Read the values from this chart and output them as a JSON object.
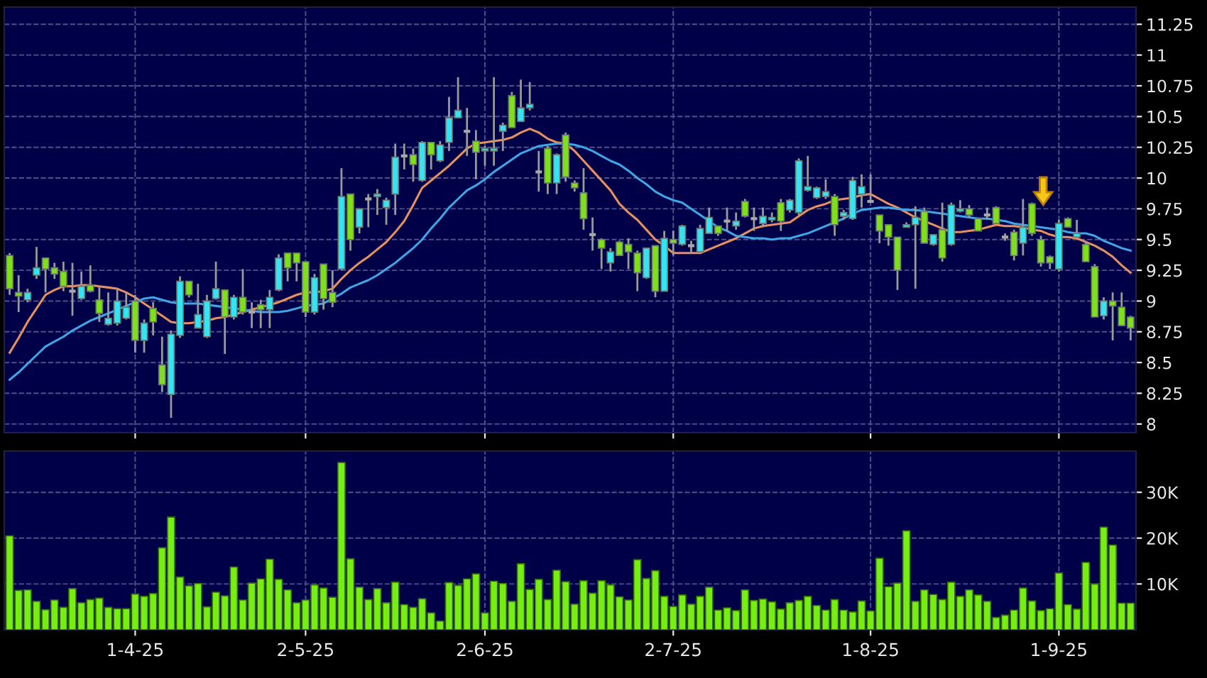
{
  "chart_data": [
    {
      "type": "candlestick",
      "categories": [
        null,
        null,
        null,
        null,
        null,
        null,
        null,
        null,
        null,
        null,
        null,
        null,
        null,
        null,
        null,
        null,
        null,
        null,
        null,
        null,
        null,
        null,
        null,
        null,
        null,
        null,
        null,
        null,
        null,
        null,
        null,
        null,
        null,
        null,
        null,
        null,
        null,
        null,
        null,
        null,
        null,
        null,
        null,
        null,
        null,
        null,
        null,
        null,
        null,
        null,
        null,
        null,
        null,
        null,
        null,
        null,
        null,
        null,
        null,
        null,
        null,
        null,
        null,
        null,
        null,
        null,
        null,
        null,
        null,
        null,
        null,
        null,
        null,
        null,
        null,
        null,
        null,
        null,
        null,
        null,
        null,
        null,
        null,
        null,
        null,
        null,
        null,
        null,
        null,
        null,
        null,
        null,
        null,
        null,
        null,
        null,
        null,
        null,
        null,
        null,
        null,
        null,
        null,
        null,
        null,
        null,
        null,
        null,
        null,
        null,
        null,
        null,
        null,
        null,
        null,
        null,
        null,
        null,
        null,
        null,
        null,
        null,
        null,
        null,
        null,
        null
      ],
      "ohlc": [
        [
          9.37,
          9.39,
          9.05,
          9.1
        ],
        [
          9.07,
          9.21,
          8.91,
          9.04
        ],
        [
          9.01,
          9.1,
          8.99,
          9.07
        ],
        [
          9.21,
          9.44,
          9.18,
          9.27
        ],
        [
          9.35,
          9.35,
          9.07,
          9.26
        ],
        [
          9.27,
          9.31,
          9.18,
          9.22
        ],
        [
          9.24,
          9.32,
          9.08,
          9.12
        ],
        [
          9.08,
          9.31,
          8.88,
          9.08
        ],
        [
          9.02,
          9.24,
          9.01,
          9.12
        ],
        [
          9.13,
          9.29,
          9.07,
          9.08
        ],
        [
          9.01,
          9.12,
          8.83,
          8.9
        ],
        [
          8.81,
          9.07,
          8.8,
          8.86
        ],
        [
          8.82,
          9.1,
          8.8,
          9.0
        ],
        [
          8.86,
          9.07,
          8.85,
          8.95
        ],
        [
          9.0,
          9.05,
          8.58,
          8.68
        ],
        [
          8.68,
          8.85,
          8.58,
          8.82
        ],
        [
          8.94,
          8.99,
          8.72,
          8.83
        ],
        [
          8.48,
          8.71,
          8.26,
          8.32
        ],
        [
          8.24,
          8.76,
          8.05,
          8.73
        ],
        [
          8.72,
          9.2,
          8.7,
          9.16
        ],
        [
          9.16,
          9.16,
          9.03,
          9.05
        ],
        [
          8.78,
          9.14,
          8.78,
          8.89
        ],
        [
          8.71,
          9.05,
          8.7,
          9.0
        ],
        [
          9.02,
          9.32,
          9.01,
          9.1
        ],
        [
          9.09,
          9.09,
          8.57,
          8.87
        ],
        [
          8.87,
          9.05,
          8.85,
          9.03
        ],
        [
          9.03,
          9.26,
          8.89,
          8.91
        ],
        [
          8.91,
          8.99,
          8.78,
          8.91
        ],
        [
          8.97,
          9.01,
          8.78,
          8.93
        ],
        [
          8.93,
          9.09,
          8.78,
          9.03
        ],
        [
          9.09,
          9.38,
          9.08,
          9.35
        ],
        [
          9.39,
          9.39,
          9.16,
          9.27
        ],
        [
          9.39,
          9.39,
          9.16,
          9.31
        ],
        [
          9.32,
          9.32,
          8.87,
          8.91
        ],
        [
          8.91,
          9.22,
          8.89,
          9.19
        ],
        [
          9.3,
          9.3,
          8.93,
          9.02
        ],
        [
          9.07,
          9.25,
          8.95,
          8.99
        ],
        [
          9.26,
          10.08,
          9.25,
          9.85
        ],
        [
          9.87,
          9.87,
          9.41,
          9.5
        ],
        [
          9.6,
          9.75,
          9.55,
          9.75
        ],
        [
          9.83,
          9.87,
          9.6,
          9.83
        ],
        [
          9.85,
          9.91,
          9.7,
          9.87
        ],
        [
          9.76,
          9.84,
          9.62,
          9.82
        ],
        [
          9.87,
          10.28,
          9.7,
          10.17
        ],
        [
          10.18,
          10.28,
          10.07,
          10.18
        ],
        [
          10.19,
          10.24,
          9.97,
          10.11
        ],
        [
          9.98,
          10.3,
          9.97,
          10.29
        ],
        [
          10.29,
          10.29,
          10.07,
          10.19
        ],
        [
          10.14,
          10.3,
          10.13,
          10.27
        ],
        [
          10.29,
          10.66,
          10.22,
          10.49
        ],
        [
          10.49,
          10.82,
          10.49,
          10.55
        ],
        [
          10.38,
          10.57,
          10.18,
          10.38
        ],
        [
          10.3,
          10.39,
          9.99,
          10.21
        ],
        [
          10.22,
          10.26,
          10.1,
          10.24
        ],
        [
          10.22,
          10.82,
          10.1,
          10.24
        ],
        [
          10.38,
          10.45,
          10.22,
          10.43
        ],
        [
          10.67,
          10.7,
          10.41,
          10.41
        ],
        [
          10.46,
          10.8,
          10.46,
          10.57
        ],
        [
          10.57,
          10.78,
          10.55,
          10.6
        ],
        [
          10.05,
          10.22,
          9.89,
          10.05
        ],
        [
          10.24,
          10.26,
          9.87,
          9.96
        ],
        [
          9.96,
          10.2,
          9.87,
          10.19
        ],
        [
          10.35,
          10.37,
          9.97,
          10.01
        ],
        [
          9.96,
          9.98,
          9.89,
          9.92
        ],
        [
          9.88,
          10.08,
          9.58,
          9.67
        ],
        [
          9.54,
          9.68,
          9.41,
          9.54
        ],
        [
          9.5,
          9.51,
          9.26,
          9.43
        ],
        [
          9.31,
          9.43,
          9.24,
          9.4
        ],
        [
          9.48,
          9.49,
          9.37,
          9.37
        ],
        [
          9.46,
          9.51,
          9.26,
          9.4
        ],
        [
          9.39,
          9.41,
          9.08,
          9.23
        ],
        [
          9.19,
          9.43,
          9.18,
          9.43
        ],
        [
          9.45,
          9.45,
          9.03,
          9.08
        ],
        [
          9.08,
          9.57,
          9.08,
          9.51
        ],
        [
          9.5,
          9.57,
          9.37,
          9.47
        ],
        [
          9.46,
          9.62,
          9.45,
          9.61
        ],
        [
          9.45,
          9.49,
          9.39,
          9.45
        ],
        [
          9.4,
          9.62,
          9.39,
          9.59
        ],
        [
          9.55,
          9.76,
          9.55,
          9.68
        ],
        [
          9.61,
          9.61,
          9.53,
          9.55
        ],
        [
          9.65,
          9.76,
          9.57,
          9.65
        ],
        [
          9.61,
          9.72,
          9.58,
          9.65
        ],
        [
          9.81,
          9.83,
          9.68,
          9.69
        ],
        [
          9.67,
          9.76,
          9.57,
          9.67
        ],
        [
          9.63,
          9.76,
          9.6,
          9.69
        ],
        [
          9.66,
          9.72,
          9.64,
          9.68
        ],
        [
          9.8,
          9.83,
          9.57,
          9.65
        ],
        [
          9.74,
          9.83,
          9.72,
          9.82
        ],
        [
          9.72,
          10.16,
          9.7,
          10.14
        ],
        [
          9.9,
          10.18,
          9.89,
          9.93
        ],
        [
          9.84,
          9.93,
          9.83,
          9.92
        ],
        [
          9.85,
          9.99,
          9.83,
          9.89
        ],
        [
          9.85,
          9.87,
          9.53,
          9.62
        ],
        [
          9.69,
          9.74,
          9.66,
          9.72
        ],
        [
          9.67,
          10.01,
          9.66,
          9.98
        ],
        [
          9.87,
          10.03,
          9.76,
          9.93
        ],
        [
          9.81,
          10.03,
          9.8,
          9.81
        ],
        [
          9.7,
          9.7,
          9.47,
          9.57
        ],
        [
          9.62,
          9.62,
          9.45,
          9.52
        ],
        [
          9.52,
          9.52,
          9.09,
          9.25
        ],
        [
          9.6,
          9.64,
          9.6,
          9.62
        ],
        [
          9.62,
          9.77,
          9.1,
          9.68
        ],
        [
          9.73,
          9.76,
          9.47,
          9.47
        ],
        [
          9.46,
          9.54,
          9.45,
          9.54
        ],
        [
          9.58,
          9.8,
          9.32,
          9.35
        ],
        [
          9.46,
          9.8,
          9.45,
          9.78
        ],
        [
          9.73,
          9.82,
          9.72,
          9.75
        ],
        [
          9.75,
          9.78,
          9.68,
          9.7
        ],
        [
          9.67,
          9.67,
          9.57,
          9.57
        ],
        [
          9.7,
          9.76,
          9.66,
          9.7
        ],
        [
          9.76,
          9.77,
          9.63,
          9.63
        ],
        [
          9.52,
          9.55,
          9.49,
          9.52
        ],
        [
          9.56,
          9.58,
          9.33,
          9.37
        ],
        [
          9.47,
          9.83,
          9.37,
          9.6
        ],
        [
          9.79,
          9.8,
          9.53,
          9.55
        ],
        [
          9.5,
          9.53,
          9.28,
          9.31
        ],
        [
          9.36,
          9.37,
          9.26,
          9.31
        ],
        [
          9.26,
          9.66,
          9.24,
          9.63
        ],
        [
          9.67,
          9.68,
          9.6,
          9.6
        ],
        [
          9.52,
          9.66,
          9.51,
          9.55
        ],
        [
          9.46,
          9.49,
          9.32,
          9.32
        ],
        [
          9.28,
          9.3,
          8.87,
          8.87
        ],
        [
          8.88,
          9.03,
          8.85,
          9.0
        ],
        [
          9.0,
          9.07,
          8.68,
          8.96
        ],
        [
          8.95,
          9.07,
          8.8,
          8.8
        ],
        [
          8.87,
          8.88,
          8.68,
          8.78
        ]
      ],
      "colors": [
        "#7fe01a",
        "#7fe01a",
        "#33e4f5",
        "#33e4f5",
        "#7fe01a",
        "#7fe01a",
        "#7fe01a",
        "#a8a8a8",
        "#33e4f5",
        "#7fe01a",
        "#7fe01a",
        "#33e4f5",
        "#33e4f5",
        "#33e4f5",
        "#7fe01a",
        "#33e4f5",
        "#7fe01a",
        "#7fe01a",
        "#33e4f5",
        "#33e4f5",
        "#7fe01a",
        "#33e4f5",
        "#33e4f5",
        "#33e4f5",
        "#7fe01a",
        "#33e4f5",
        "#7fe01a",
        "#a8a8a8",
        "#7fe01a",
        "#33e4f5",
        "#33e4f5",
        "#7fe01a",
        "#7fe01a",
        "#7fe01a",
        "#33e4f5",
        "#7fe01a",
        "#7fe01a",
        "#33e4f5",
        "#7fe01a",
        "#33e4f5",
        "#a8a8a8",
        "#33e4f5",
        "#33e4f5",
        "#33e4f5",
        "#a8a8a8",
        "#7fe01a",
        "#33e4f5",
        "#7fe01a",
        "#33e4f5",
        "#33e4f5",
        "#33e4f5",
        "#a8a8a8",
        "#7fe01a",
        "#33e4f5",
        "#33e4f5",
        "#33e4f5",
        "#7fe01a",
        "#33e4f5",
        "#33e4f5",
        "#a8a8a8",
        "#7fe01a",
        "#33e4f5",
        "#7fe01a",
        "#7fe01a",
        "#7fe01a",
        "#a8a8a8",
        "#7fe01a",
        "#33e4f5",
        "#7fe01a",
        "#7fe01a",
        "#7fe01a",
        "#33e4f5",
        "#7fe01a",
        "#33e4f5",
        "#7fe01a",
        "#33e4f5",
        "#a8a8a8",
        "#33e4f5",
        "#33e4f5",
        "#7fe01a",
        "#a8a8a8",
        "#33e4f5",
        "#7fe01a",
        "#a8a8a8",
        "#33e4f5",
        "#33e4f5",
        "#7fe01a",
        "#33e4f5",
        "#33e4f5",
        "#33e4f5",
        "#33e4f5",
        "#33e4f5",
        "#7fe01a",
        "#33e4f5",
        "#33e4f5",
        "#33e4f5",
        "#a8a8a8",
        "#7fe01a",
        "#7fe01a",
        "#7fe01a",
        "#33e4f5",
        "#33e4f5",
        "#7fe01a",
        "#33e4f5",
        "#7fe01a",
        "#33e4f5",
        "#33e4f5",
        "#7fe01a",
        "#7fe01a",
        "#a8a8a8",
        "#7fe01a",
        "#a8a8a8",
        "#7fe01a",
        "#33e4f5",
        "#7fe01a",
        "#7fe01a",
        "#7fe01a",
        "#33e4f5",
        "#7fe01a",
        "#33e4f5",
        "#7fe01a",
        "#7fe01a",
        "#33e4f5",
        "#7fe01a",
        "#7fe01a",
        "#7fe01a"
      ],
      "series": [
        {
          "type": "line",
          "color": "#e8905f",
          "values": [
            8.58,
            8.7,
            8.83,
            8.94,
            9.05,
            9.09,
            9.12,
            9.12,
            9.13,
            9.13,
            9.12,
            9.11,
            9.1,
            9.07,
            9.03,
            8.98,
            8.93,
            8.88,
            8.83,
            8.82,
            8.82,
            8.83,
            8.84,
            8.86,
            8.87,
            8.89,
            8.91,
            8.93,
            8.95,
            8.97,
            8.99,
            9.02,
            9.05,
            9.07,
            9.07,
            9.08,
            9.1,
            9.18,
            9.25,
            9.31,
            9.36,
            9.42,
            9.48,
            9.56,
            9.65,
            9.78,
            9.92,
            9.98,
            10.04,
            10.1,
            10.17,
            10.24,
            10.28,
            10.29,
            10.3,
            10.31,
            10.33,
            10.37,
            10.4,
            10.37,
            10.32,
            10.29,
            10.28,
            10.22,
            10.14,
            10.06,
            9.98,
            9.9,
            9.79,
            9.72,
            9.66,
            9.58,
            9.5,
            9.45,
            9.39,
            9.39,
            9.39,
            9.39,
            9.42,
            9.45,
            9.48,
            9.51,
            9.55,
            9.59,
            9.61,
            9.62,
            9.63,
            9.64,
            9.69,
            9.74,
            9.77,
            9.79,
            9.82,
            9.83,
            9.84,
            9.86,
            9.87,
            9.83,
            9.79,
            9.76,
            9.72,
            9.68,
            9.65,
            9.62,
            9.59,
            9.56,
            9.56,
            9.57,
            9.58,
            9.6,
            9.62,
            9.61,
            9.61,
            9.6,
            9.58,
            9.57,
            9.54,
            9.52,
            9.52,
            9.51,
            9.48,
            9.45,
            9.41,
            9.36,
            9.29,
            9.23
          ]
        },
        {
          "type": "line",
          "color": "#3fa6e6",
          "values": [
            8.36,
            8.42,
            8.49,
            8.56,
            8.63,
            8.67,
            8.71,
            8.76,
            8.8,
            8.84,
            8.87,
            8.9,
            8.93,
            8.96,
            8.99,
            9.02,
            9.03,
            9.01,
            8.99,
            8.98,
            8.98,
            8.98,
            8.97,
            8.96,
            8.95,
            8.94,
            8.93,
            8.92,
            8.91,
            8.91,
            8.91,
            8.92,
            8.94,
            8.96,
            8.97,
            8.98,
            9.02,
            9.06,
            9.11,
            9.14,
            9.17,
            9.21,
            9.26,
            9.31,
            9.37,
            9.43,
            9.5,
            9.59,
            9.67,
            9.76,
            9.83,
            9.9,
            9.94,
            9.99,
            10.05,
            10.1,
            10.15,
            10.2,
            10.23,
            10.26,
            10.27,
            10.28,
            10.28,
            10.27,
            10.25,
            10.22,
            10.18,
            10.14,
            10.11,
            10.06,
            10.0,
            9.95,
            9.89,
            9.85,
            9.82,
            9.8,
            9.75,
            9.7,
            9.65,
            9.6,
            9.57,
            9.53,
            9.52,
            9.51,
            9.51,
            9.5,
            9.51,
            9.51,
            9.53,
            9.55,
            9.58,
            9.61,
            9.64,
            9.67,
            9.71,
            9.74,
            9.75,
            9.76,
            9.76,
            9.75,
            9.74,
            9.74,
            9.73,
            9.72,
            9.71,
            9.7,
            9.69,
            9.68,
            9.67,
            9.67,
            9.66,
            9.65,
            9.63,
            9.62,
            9.61,
            9.6,
            9.59,
            9.58,
            9.56,
            9.55,
            9.55,
            9.53,
            9.49,
            9.46,
            9.43,
            9.41
          ]
        }
      ],
      "ylim": [
        7.93,
        11.39
      ],
      "yticks": [
        8,
        8.25,
        8.5,
        8.75,
        9,
        9.25,
        9.5,
        9.75,
        10,
        10.25,
        10.5,
        10.75,
        11,
        11.25
      ],
      "grid": true,
      "tick_labels": "y"
    },
    {
      "type": "bar",
      "categories": [
        null,
        null,
        null,
        null,
        null,
        null,
        null,
        null,
        null,
        null,
        null,
        null,
        null,
        null,
        "1-4-25",
        null,
        null,
        null,
        null,
        null,
        null,
        null,
        null,
        null,
        null,
        null,
        null,
        null,
        null,
        null,
        null,
        null,
        null,
        "2-5-25",
        null,
        null,
        null,
        null,
        null,
        null,
        null,
        null,
        null,
        null,
        null,
        null,
        null,
        null,
        null,
        null,
        null,
        null,
        null,
        "2-6-25",
        null,
        null,
        null,
        null,
        null,
        null,
        null,
        null,
        null,
        null,
        null,
        null,
        null,
        null,
        null,
        null,
        null,
        null,
        null,
        null,
        "2-7-25",
        null,
        null,
        null,
        null,
        null,
        null,
        null,
        null,
        null,
        null,
        null,
        null,
        null,
        null,
        null,
        null,
        null,
        null,
        null,
        null,
        null,
        "1-8-25",
        null,
        null,
        null,
        null,
        null,
        null,
        null,
        null,
        null,
        null,
        null,
        null,
        null,
        null,
        null,
        null,
        null,
        null,
        null,
        null,
        "1-9-25",
        null,
        null,
        null,
        null,
        null,
        null,
        null,
        null
      ],
      "values": [
        20500,
        8600,
        8700,
        6200,
        4400,
        6500,
        4900,
        9000,
        5900,
        6600,
        6900,
        4900,
        4600,
        4600,
        7800,
        7300,
        7900,
        17900,
        24600,
        11500,
        9600,
        10100,
        5000,
        8200,
        7400,
        13700,
        6500,
        10200,
        11100,
        15400,
        11000,
        8700,
        5900,
        6500,
        9800,
        9100,
        7100,
        36500,
        15500,
        9300,
        6600,
        9000,
        5900,
        10400,
        5500,
        4900,
        6800,
        3700,
        1900,
        10300,
        9700,
        11100,
        12200,
        3700,
        10600,
        10100,
        6200,
        14400,
        8800,
        11000,
        6600,
        13000,
        10500,
        5600,
        10700,
        8000,
        10700,
        9800,
        7200,
        6500,
        15300,
        11200,
        12900,
        7300,
        5100,
        7600,
        5600,
        7300,
        9300,
        4300,
        4800,
        4200,
        8700,
        6400,
        6700,
        6100,
        4500,
        5900,
        6400,
        7300,
        5300,
        4300,
        6600,
        4300,
        3900,
        6300,
        4100,
        15600,
        9400,
        10200,
        21600,
        6200,
        8700,
        7700,
        6600,
        10400,
        7300,
        8700,
        7600,
        6200,
        2700,
        3200,
        4300,
        9100,
        6300,
        4200,
        4600,
        12400,
        5500,
        4500,
        14700,
        10000,
        22400,
        18500,
        5800,
        5800
      ],
      "color": "#77ee11",
      "ylim": [
        0,
        39000
      ],
      "yticks": [
        {
          "value": 10000,
          "label": "10K"
        },
        {
          "value": 20000,
          "label": "20K"
        },
        {
          "value": 30000,
          "label": "30K"
        }
      ],
      "grid": true
    }
  ]
}
